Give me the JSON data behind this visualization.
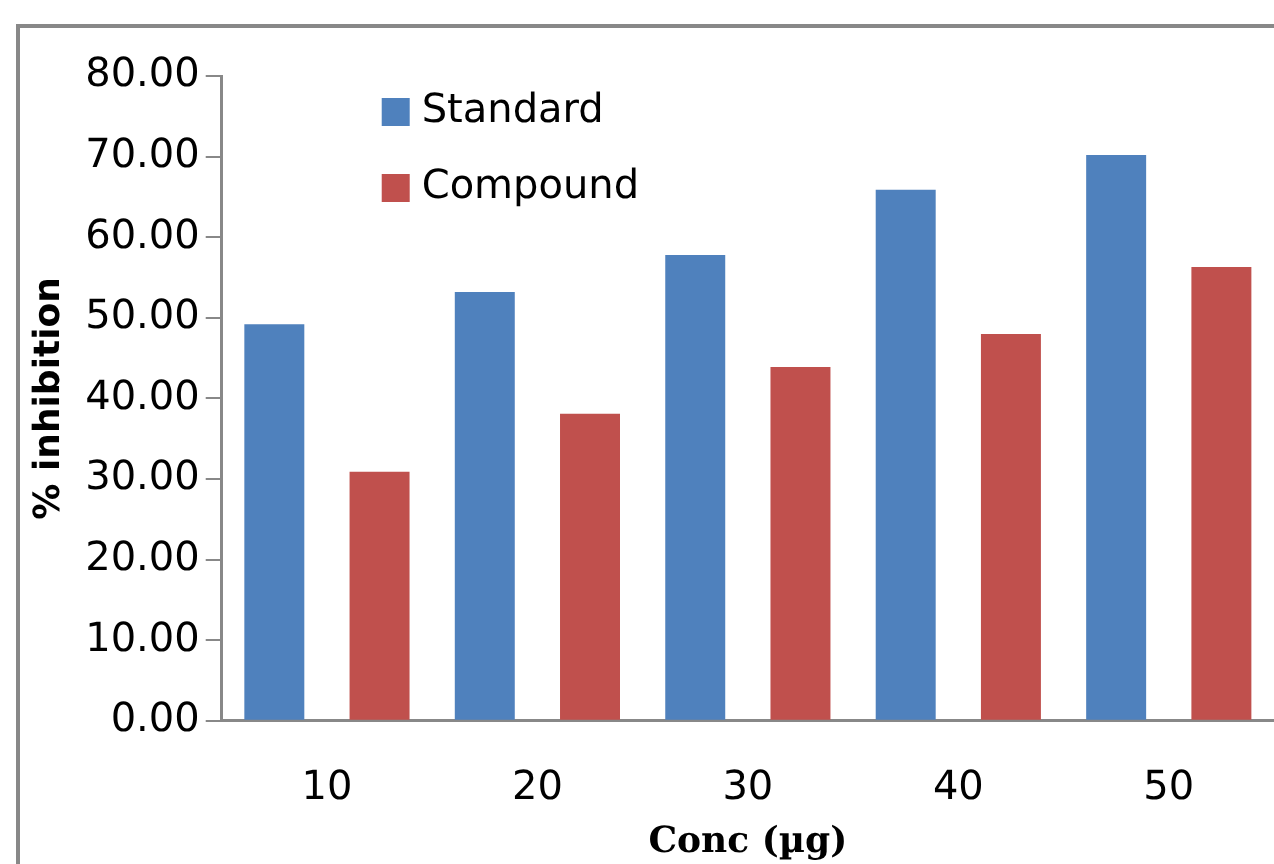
{
  "chart_data": {
    "type": "bar",
    "xlabel": "Conc (µg)",
    "ylabel": "% inhibition",
    "categories": [
      "10",
      "20",
      "30",
      "40",
      "50"
    ],
    "series": [
      {
        "name": "Standard",
        "color": "#4f81bd",
        "values": [
          49.2,
          53.2,
          57.8,
          65.9,
          70.2
        ]
      },
      {
        "name": "Compound",
        "color": "#c0504d",
        "values": [
          30.9,
          38.1,
          43.9,
          48.0,
          56.3
        ]
      }
    ],
    "ylim": [
      0,
      80
    ],
    "yticks": [
      {
        "value": 0,
        "label": "0.00"
      },
      {
        "value": 10,
        "label": "10.00"
      },
      {
        "value": 20,
        "label": "20.00"
      },
      {
        "value": 30,
        "label": "30.00"
      },
      {
        "value": 40,
        "label": "40.00"
      },
      {
        "value": 50,
        "label": "50.00"
      },
      {
        "value": 60,
        "label": "60.00"
      },
      {
        "value": 70,
        "label": "70.00"
      },
      {
        "value": 80,
        "label": "80.00"
      }
    ],
    "grid": false,
    "legend": "top left"
  }
}
